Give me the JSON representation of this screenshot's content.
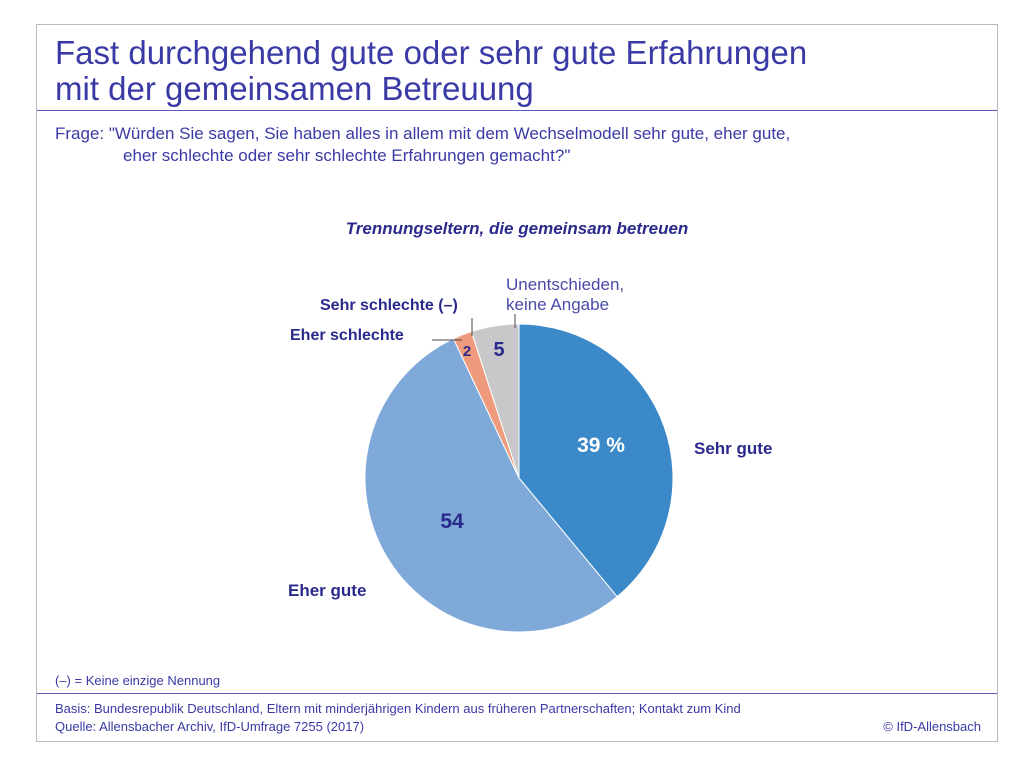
{
  "header": {
    "title_line1": "Fast durchgehend gute oder sehr gute Erfahrungen",
    "title_line2": "mit der gemeinsamen Betreuung",
    "question_line1": "Frage: \"Würden Sie sagen, Sie haben alles in allem mit dem Wechselmodell sehr gute, eher gute,",
    "question_line2": "eher schlechte oder sehr schlechte Erfahrungen gemacht?\""
  },
  "footer": {
    "footnote": "(–) = Keine einzige Nennung",
    "basis": "Basis: Bundesrepublik Deutschland, Eltern mit minderjährigen Kindern aus früheren Partnerschaften; Kontakt zum Kind",
    "source": "Quelle: Allensbacher Archiv, IfD-Umfrage 7255 (2017)",
    "copyright": "© IfD-Allensbach"
  },
  "chart_data": {
    "type": "pie",
    "title": "Trennungseltern, die gemeinsam betreuen",
    "slices": [
      {
        "label": "Sehr gute",
        "value": 39,
        "value_label": "39 %",
        "color": "#3b89c9"
      },
      {
        "label": "Eher gute",
        "value": 54,
        "value_label": "54",
        "color": "#7ea9d9"
      },
      {
        "label": "Sehr schlechte (–)",
        "value": 0,
        "value_label": "",
        "color": "#2a2a8c"
      },
      {
        "label": "Eher schlechte",
        "value": 2,
        "value_label": "2",
        "color": "#ee9a7c"
      },
      {
        "label": "Unentschieden, keine Angabe",
        "label_line1": "Unentschieden,",
        "label_line2": "keine Angabe",
        "value": 5,
        "value_label": "5",
        "color": "#c8c8ca"
      }
    ],
    "start": "top",
    "direction": "clockwise"
  }
}
